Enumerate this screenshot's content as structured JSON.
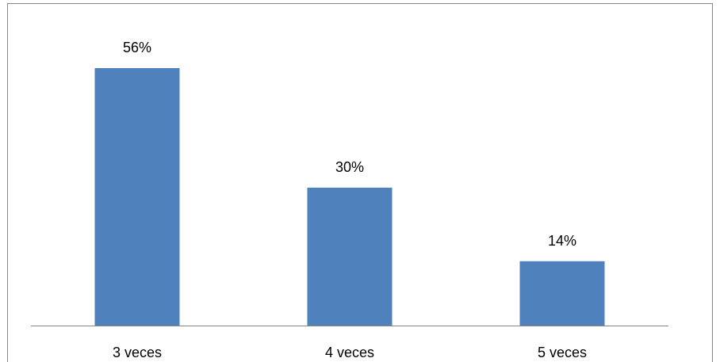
{
  "chart_data": {
    "type": "bar",
    "categories": [
      "3 veces",
      "4 veces",
      "5 veces"
    ],
    "values": [
      56,
      30,
      14
    ],
    "value_labels": [
      "56%",
      "30%",
      "14%"
    ],
    "unit": "%",
    "ylim": [
      0,
      60
    ],
    "title": "",
    "xlabel": "",
    "ylabel": "",
    "grid": false,
    "legend": "none",
    "bar_color": "#4F81BD",
    "axis_color": "#868686",
    "border_color": "#868686"
  }
}
